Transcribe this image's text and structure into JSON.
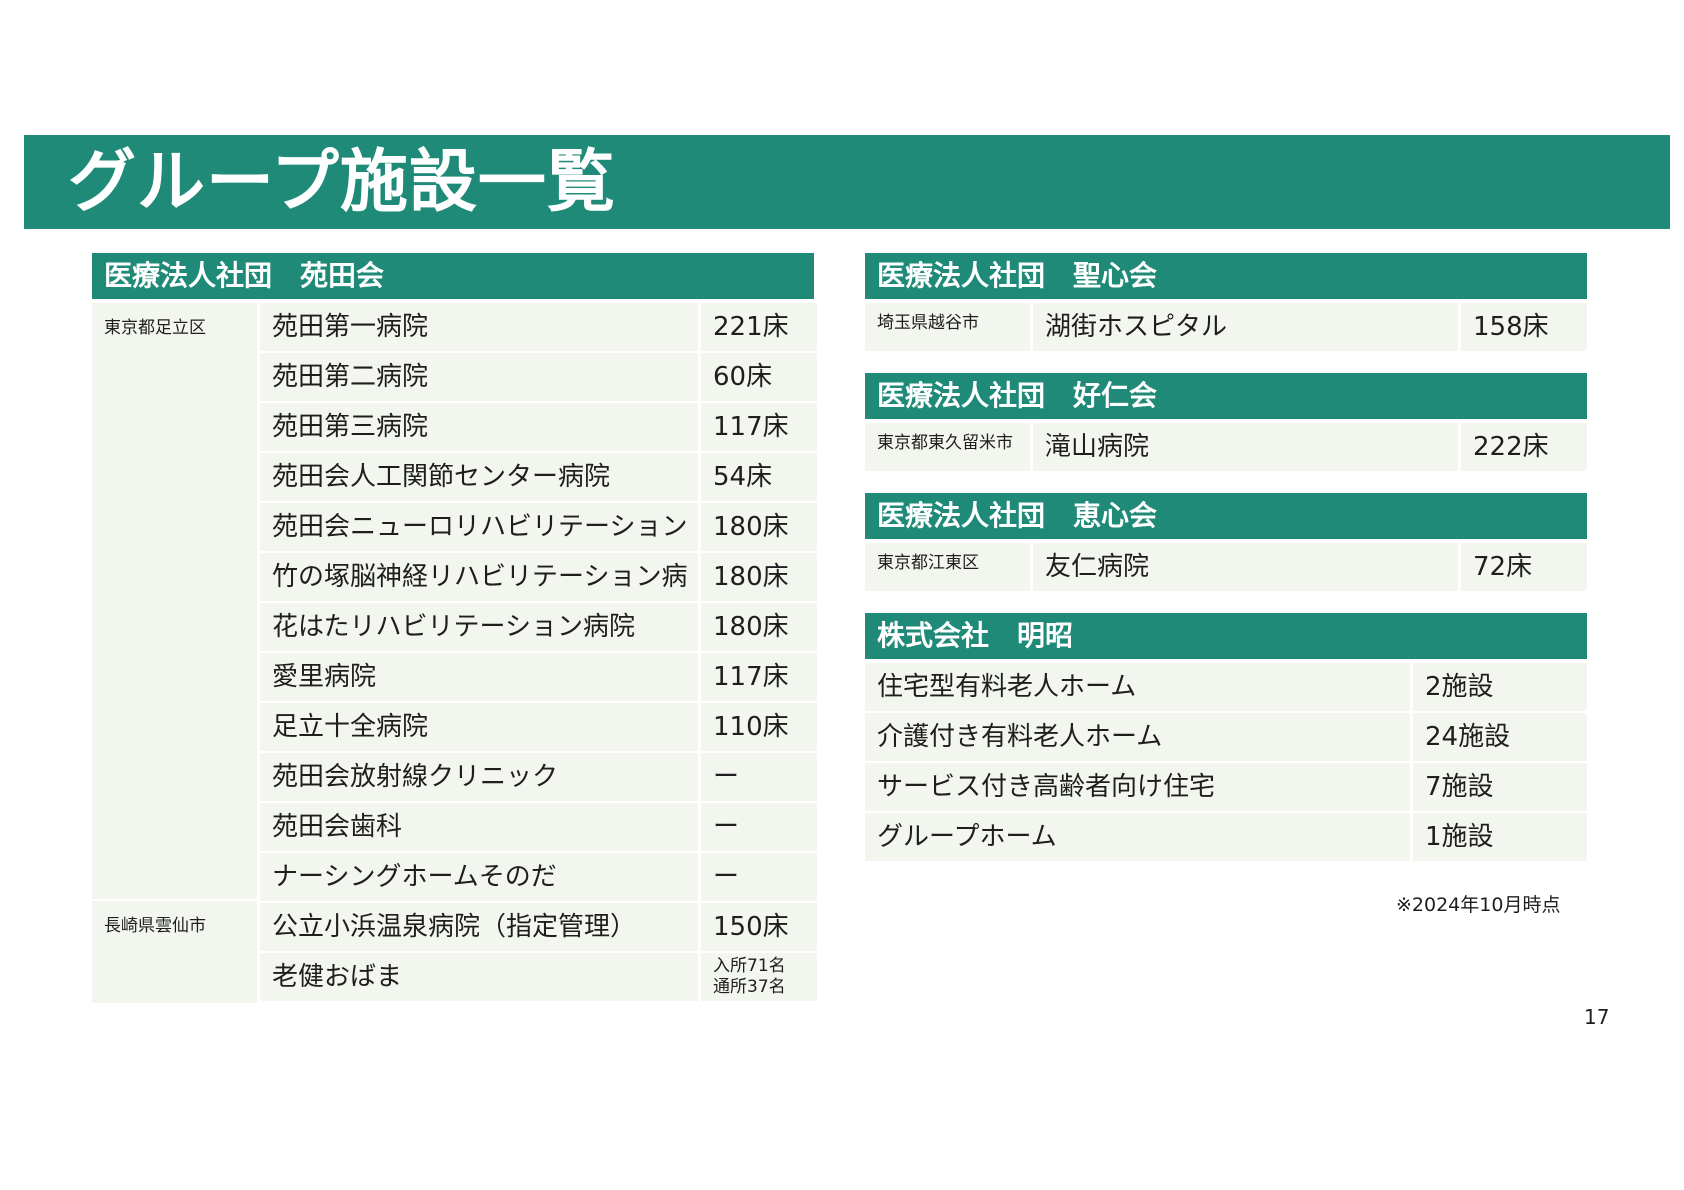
{
  "title": "グループ施設一覧",
  "left": {
    "header": "医療法人社団　苑田会",
    "region1": "東京都足立区",
    "region2": "長崎県雲仙市",
    "facilities": [
      {
        "name": "苑田第一病院",
        "value": "221床"
      },
      {
        "name": "苑田第二病院",
        "value": "60床"
      },
      {
        "name": "苑田第三病院",
        "value": "117床"
      },
      {
        "name": "苑田会人工関節センター病院",
        "value": "54床"
      },
      {
        "name": "苑田会ニューロリハビリテーション病院",
        "value": "180床"
      },
      {
        "name": "竹の塚脳神経リハビリテーション病院",
        "value": "180床"
      },
      {
        "name": "花はたリハビリテーション病院",
        "value": "180床"
      },
      {
        "name": "愛里病院",
        "value": "117床"
      },
      {
        "name": "足立十全病院",
        "value": "110床"
      },
      {
        "name": "苑田会放射線クリニック",
        "value": "ー"
      },
      {
        "name": "苑田会歯科",
        "value": "ー"
      },
      {
        "name": "ナーシングホームそのだ",
        "value": "ー"
      },
      {
        "name": "公立小浜温泉病院（指定管理）",
        "value": "150床"
      },
      {
        "name": "老健おばま",
        "value_line1": "入所71名",
        "value_line2": "通所37名"
      }
    ]
  },
  "right": {
    "seishinkai": {
      "header": "医療法人社団　聖心会",
      "region": "埼玉県越谷市",
      "name": "湖街ホスピタル",
      "value": "158床"
    },
    "kojinkai": {
      "header": "医療法人社団　好仁会",
      "region": "東京都東久留米市",
      "name": "滝山病院",
      "value": "222床"
    },
    "keishinkai": {
      "header": "医療法人社団　恵心会",
      "region": "東京都江東区",
      "name": "友仁病院",
      "value": "72床"
    },
    "meisho": {
      "header": "株式会社　明昭",
      "items": [
        {
          "name": "住宅型有料老人ホーム",
          "value": "2施設"
        },
        {
          "name": "介護付き有料老人ホーム",
          "value": "24施設"
        },
        {
          "name": "サービス付き高齢者向け住宅",
          "value": "7施設"
        },
        {
          "name": "グループホーム",
          "value": "1施設"
        }
      ]
    }
  },
  "note": "※2024年10月時点",
  "page_number": "17"
}
